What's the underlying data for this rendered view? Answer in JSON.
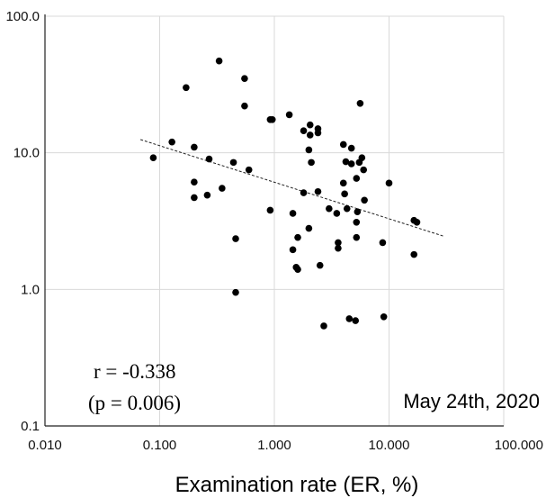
{
  "chart_data": {
    "type": "scatter",
    "xscale": "log",
    "yscale": "log",
    "xlim": [
      0.01,
      100
    ],
    "ylim": [
      0.1,
      100
    ],
    "grid": true,
    "xlabel": "Examination rate (ER, %)",
    "ylabel": "",
    "x_ticks": [
      "0.010",
      "0.100",
      "1.000",
      "10.000",
      "100.000"
    ],
    "y_ticks": [
      "0.1",
      "1.0",
      "10.0",
      "100.0"
    ],
    "annotations": {
      "r": "r = -0.338",
      "p": "(p = 0.006)",
      "date": "May 24th, 2020"
    },
    "trendline": {
      "style": "dashed",
      "points": [
        [
          0.068,
          12.5
        ],
        [
          30.0,
          2.45
        ]
      ]
    },
    "points": [
      [
        0.33,
        47
      ],
      [
        0.17,
        30
      ],
      [
        0.55,
        35
      ],
      [
        0.55,
        22
      ],
      [
        0.92,
        17.5
      ],
      [
        0.96,
        17.5
      ],
      [
        1.35,
        19
      ],
      [
        1.8,
        14.5
      ],
      [
        2.05,
        16
      ],
      [
        2.05,
        13.5
      ],
      [
        2.4,
        15
      ],
      [
        2.4,
        14
      ],
      [
        5.6,
        23
      ],
      [
        0.128,
        12
      ],
      [
        0.2,
        11
      ],
      [
        0.088,
        9.2
      ],
      [
        0.27,
        9
      ],
      [
        0.44,
        8.5
      ],
      [
        0.6,
        7.5
      ],
      [
        2.0,
        10.5
      ],
      [
        2.1,
        8.5
      ],
      [
        4.0,
        11.5
      ],
      [
        4.7,
        10.8
      ],
      [
        5.8,
        9.2
      ],
      [
        5.5,
        8.5
      ],
      [
        4.2,
        8.6
      ],
      [
        4.7,
        8.3
      ],
      [
        6.0,
        7.5
      ],
      [
        5.2,
        6.5
      ],
      [
        10.0,
        6.0
      ],
      [
        4.0,
        6.0
      ],
      [
        0.2,
        6.1
      ],
      [
        0.35,
        5.5
      ],
      [
        0.2,
        4.7
      ],
      [
        0.26,
        4.9
      ],
      [
        1.8,
        5.1
      ],
      [
        2.4,
        5.2
      ],
      [
        4.1,
        5.0
      ],
      [
        6.1,
        4.5
      ],
      [
        0.92,
        3.8
      ],
      [
        1.45,
        3.6
      ],
      [
        3.0,
        3.9
      ],
      [
        3.5,
        3.6
      ],
      [
        4.3,
        3.9
      ],
      [
        5.3,
        3.7
      ],
      [
        5.2,
        3.1
      ],
      [
        16.5,
        3.2
      ],
      [
        17.5,
        3.1
      ],
      [
        2.0,
        2.8
      ],
      [
        1.6,
        2.4
      ],
      [
        0.46,
        2.35
      ],
      [
        3.6,
        2.2
      ],
      [
        5.2,
        2.4
      ],
      [
        8.8,
        2.2
      ],
      [
        1.45,
        1.95
      ],
      [
        3.6,
        2.0
      ],
      [
        16.5,
        1.8
      ],
      [
        1.55,
        1.45
      ],
      [
        1.6,
        1.4
      ],
      [
        2.5,
        1.5
      ],
      [
        0.46,
        0.95
      ],
      [
        4.5,
        0.61
      ],
      [
        5.1,
        0.59
      ],
      [
        9.0,
        0.63
      ],
      [
        2.7,
        0.54
      ]
    ]
  }
}
